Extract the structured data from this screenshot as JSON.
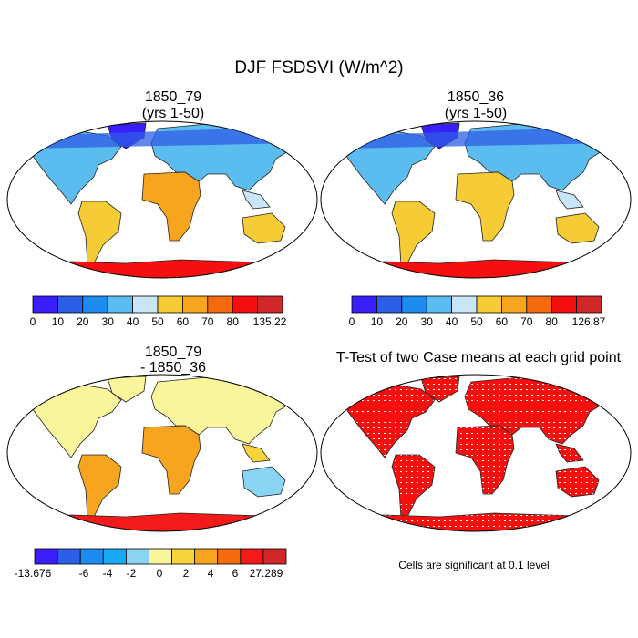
{
  "title": "DJF FSDSVI (W/m^2)",
  "chart_data": [
    {
      "type": "heatmap",
      "map_projection": "robinson",
      "title_line1": "1850_79",
      "title_line2": "(yrs 1-50)",
      "colorbar": {
        "colors": [
          "#3b1ffa",
          "#2d5ee6",
          "#1d8cf0",
          "#5bbcf0",
          "#c8e6f5",
          "#f5cc35",
          "#f7a51e",
          "#f46b0f",
          "#f50f0f",
          "#d02828"
        ],
        "labels": [
          "0",
          "10",
          "20",
          "30",
          "40",
          "50",
          "60",
          "70",
          "80",
          "135.22"
        ]
      }
    },
    {
      "type": "heatmap",
      "map_projection": "robinson",
      "title_line1": "1850_36",
      "title_line2": "(yrs 1-50)",
      "colorbar": {
        "colors": [
          "#3b1ffa",
          "#2d5ee6",
          "#1d8cf0",
          "#5bbcf0",
          "#c8e6f5",
          "#f5cc35",
          "#f7a51e",
          "#f46b0f",
          "#f50f0f",
          "#d02828"
        ],
        "labels": [
          "0",
          "10",
          "20",
          "30",
          "40",
          "50",
          "60",
          "70",
          "80",
          "126.87"
        ]
      }
    },
    {
      "type": "heatmap",
      "map_projection": "robinson",
      "title_line1": "1850_79",
      "title_line2": "- 1850_36",
      "colorbar": {
        "colors": [
          "#3b1ffa",
          "#2d5ee6",
          "#1d8cf0",
          "#19aaf5",
          "#88d4f2",
          "#f9f59a",
          "#f7d43c",
          "#f7a51e",
          "#f46b0f",
          "#f31a1a",
          "#d02828"
        ],
        "labels": [
          "-13.676",
          "-6",
          "-4",
          "-2",
          "0",
          "2",
          "4",
          "6",
          "27.289"
        ]
      }
    },
    {
      "type": "heatmap",
      "map_projection": "robinson",
      "title_line1": "T-Test of two Case means at each grid point",
      "significance_color": "#f50f0f",
      "note": "Cells are significant at 0.1 level"
    }
  ]
}
